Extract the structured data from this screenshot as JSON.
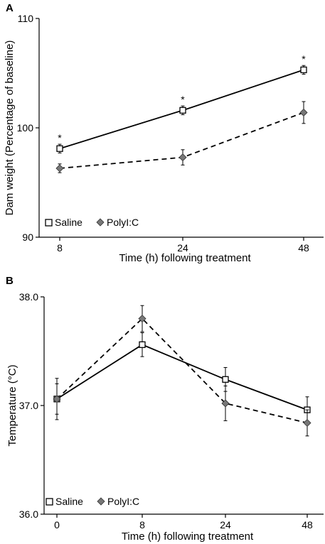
{
  "chart_data": [
    {
      "panel_label": "A",
      "type": "line",
      "xlabel": "Time (h) following treatment",
      "ylabel": "Dam weight (Percentage of baseline)",
      "x": [
        8,
        24,
        48
      ],
      "x_tick_labels": [
        "8",
        "24",
        "48"
      ],
      "ylim": [
        90,
        110
      ],
      "y_ticks": [
        90,
        100,
        110
      ],
      "y_tick_labels": [
        "90",
        "100",
        "110"
      ],
      "legend_position": "bottom-left",
      "series": [
        {
          "name": "Saline",
          "marker": "open-square",
          "line_style": "solid",
          "values": [
            98.1,
            101.6,
            105.3
          ],
          "errors": [
            0.4,
            0.4,
            0.4
          ],
          "significance": [
            "*",
            "*",
            "*"
          ]
        },
        {
          "name": "PolyI:C",
          "marker": "filled-diamond",
          "line_style": "dashed",
          "values": [
            96.3,
            97.3,
            101.4
          ],
          "errors": [
            0.4,
            0.7,
            1.0
          ],
          "significance": [
            "",
            "",
            ""
          ]
        }
      ]
    },
    {
      "panel_label": "B",
      "type": "line",
      "xlabel": "Time (h) following treatment",
      "ylabel": "Temperature (°C)",
      "x": [
        0,
        8,
        24,
        48
      ],
      "x_tick_labels": [
        "0",
        "8",
        "24",
        "48"
      ],
      "ylim": [
        36.0,
        38.0
      ],
      "y_ticks": [
        36.0,
        37.0,
        38.0
      ],
      "y_tick_labels": [
        "36.0",
        "37.0",
        "38.0"
      ],
      "legend_position": "bottom-left",
      "series": [
        {
          "name": "Saline",
          "marker": "open-square",
          "line_style": "solid",
          "values": [
            37.06,
            37.56,
            37.24,
            36.96
          ],
          "errors": [
            0.19,
            0.11,
            0.11,
            0.12
          ]
        },
        {
          "name": "PolyI:C",
          "marker": "filled-diamond",
          "line_style": "dashed",
          "values": [
            37.06,
            37.8,
            37.02,
            36.84
          ],
          "errors": [
            0.14,
            0.12,
            0.16,
            0.12
          ]
        }
      ]
    }
  ]
}
